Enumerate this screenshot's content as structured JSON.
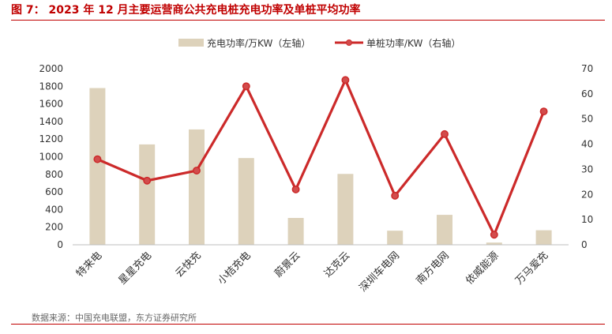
{
  "header": {
    "title": "图 7： 2023 年 12 月主要运营商公共充电桩充电功率及单桩平均功率"
  },
  "footer": {
    "source": "数据来源：中国充电联盟，东方证券研究所"
  },
  "colors": {
    "bar": "#ddd2bb",
    "line": "#cc2a2a",
    "marker": "#d24c4c",
    "accent": "#c00000"
  },
  "chart_data": {
    "type": "bar",
    "categories": [
      "特来电",
      "星星充电",
      "云快充",
      "小桔充电",
      "蔚景云",
      "达克云",
      "深圳车电网",
      "南方电网",
      "依威能源",
      "万马爱充"
    ],
    "series": [
      {
        "name": "充电功率/万KW（左轴）",
        "type": "bar",
        "axis": "left",
        "values": [
          1780,
          1140,
          1310,
          985,
          305,
          805,
          160,
          340,
          25,
          165
        ]
      },
      {
        "name": "单桩功率/KW（右轴）",
        "type": "line",
        "axis": "right",
        "values": [
          34,
          25.5,
          29.5,
          63,
          22,
          65.5,
          19.5,
          44,
          4,
          53
        ]
      }
    ],
    "y_left": {
      "min": 0,
      "max": 2000,
      "ticks": [
        0,
        200,
        400,
        600,
        800,
        1000,
        1200,
        1400,
        1600,
        1800,
        2000
      ]
    },
    "y_right": {
      "min": 0,
      "max": 70,
      "ticks": [
        0,
        10,
        20,
        30,
        40,
        50,
        60,
        70
      ]
    },
    "legend_position": "top-center",
    "grid": false
  }
}
